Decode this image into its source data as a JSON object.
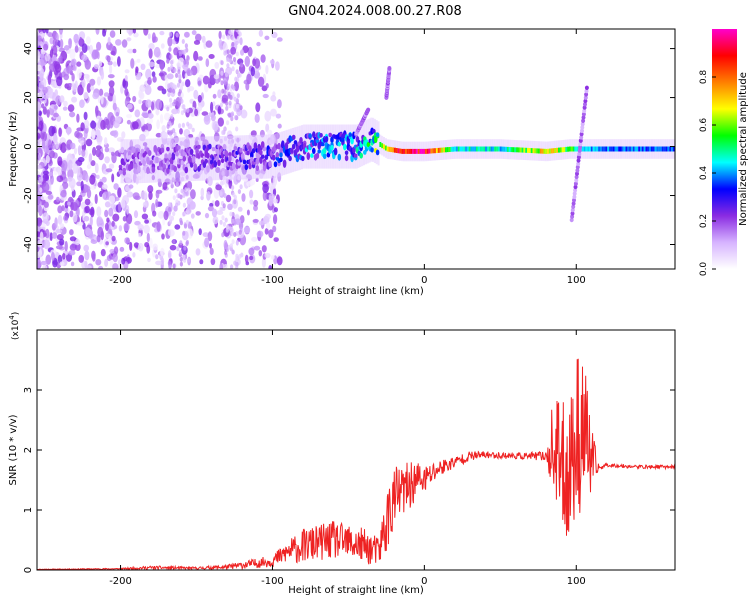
{
  "title": "GN04.2024.008.00.27.R08",
  "chart_data": [
    {
      "type": "heatmap",
      "xlabel": "Height of straight line (km)",
      "ylabel": "Frequency (Hz)",
      "xlim": [
        -255,
        165
      ],
      "ylim": [
        -50,
        48
      ],
      "xticks": [
        -200,
        -100,
        0,
        100
      ],
      "yticks": [
        -40,
        -20,
        0,
        20,
        40
      ],
      "colorbar": {
        "label": "Normalized spectral amplitude",
        "range": [
          0.0,
          1.0
        ],
        "ticks": [
          "0.0",
          "0.2",
          "0.4",
          "0.6",
          "0.8"
        ],
        "colormap": [
          "#ffffff",
          "#d6b3ff",
          "#8a2be2",
          "#0000ff",
          "#00ffff",
          "#00ff00",
          "#ffff00",
          "#ff7f00",
          "#ff0000",
          "#ff00cc"
        ]
      },
      "ridge": {
        "x": [
          -190,
          -150,
          -100,
          -80,
          -60,
          -45,
          -35,
          -25,
          -15,
          0,
          20,
          50,
          80,
          95,
          110,
          165
        ],
        "frequency": [
          -6,
          -5,
          -4,
          0,
          0,
          0,
          3,
          -1,
          -2,
          -2,
          -1,
          -1,
          -2,
          -1,
          -1,
          -1
        ],
        "amplitude": [
          0.2,
          0.22,
          0.3,
          0.38,
          0.4,
          0.42,
          0.5,
          0.7,
          0.9,
          0.95,
          0.45,
          0.45,
          0.7,
          0.55,
          0.4,
          0.35
        ]
      },
      "streaks": [
        {
          "x": [
            97,
            107
          ],
          "frequency": [
            -30,
            24
          ]
        },
        {
          "x": [
            -45,
            -37
          ],
          "frequency": [
            5,
            15
          ]
        },
        {
          "x": [
            -25,
            -23
          ],
          "frequency": [
            20,
            32
          ]
        }
      ]
    },
    {
      "type": "line",
      "xlabel": "Height of straight line (km)",
      "ylabel": "SNR (10 * v/v)",
      "exponent_label": "(x10",
      "exponent_power": "4",
      "exponent_close": ")",
      "xlim": [
        -255,
        165
      ],
      "ylim": [
        0,
        4
      ],
      "xticks": [
        -200,
        -100,
        0,
        100
      ],
      "yticks": [
        0,
        1,
        2,
        3
      ],
      "color": "#ee2222",
      "series": [
        {
          "x": [
            -255,
            -200,
            -180,
            -150,
            -130,
            -120,
            -100,
            -90,
            -80,
            -70,
            -60,
            -50,
            -40,
            -30,
            -25,
            -20,
            -15,
            -10,
            -5,
            0,
            5,
            10,
            20,
            30,
            40,
            60,
            80,
            85,
            90,
            95,
            100,
            105,
            110,
            115,
            120,
            140,
            165
          ],
          "values": [
            0.01,
            0.02,
            0.04,
            0.03,
            0.05,
            0.08,
            0.15,
            0.3,
            0.4,
            0.45,
            0.5,
            0.45,
            0.4,
            0.3,
            0.8,
            1.2,
            1.3,
            1.4,
            1.5,
            1.5,
            1.6,
            1.7,
            1.8,
            1.9,
            1.92,
            1.9,
            1.9,
            2.0,
            1.8,
            1.6,
            2.2,
            2.4,
            1.8,
            1.7,
            1.75,
            1.72,
            1.72
          ],
          "noise": [
            0.005,
            0.01,
            0.03,
            0.02,
            0.04,
            0.06,
            0.1,
            0.2,
            0.28,
            0.3,
            0.32,
            0.3,
            0.3,
            0.25,
            0.55,
            0.55,
            0.45,
            0.4,
            0.35,
            0.25,
            0.2,
            0.15,
            0.1,
            0.08,
            0.06,
            0.05,
            0.08,
            0.9,
            1.0,
            1.2,
            1.4,
            1.3,
            0.6,
            0.05,
            0.03,
            0.03,
            0.03
          ]
        }
      ]
    }
  ]
}
